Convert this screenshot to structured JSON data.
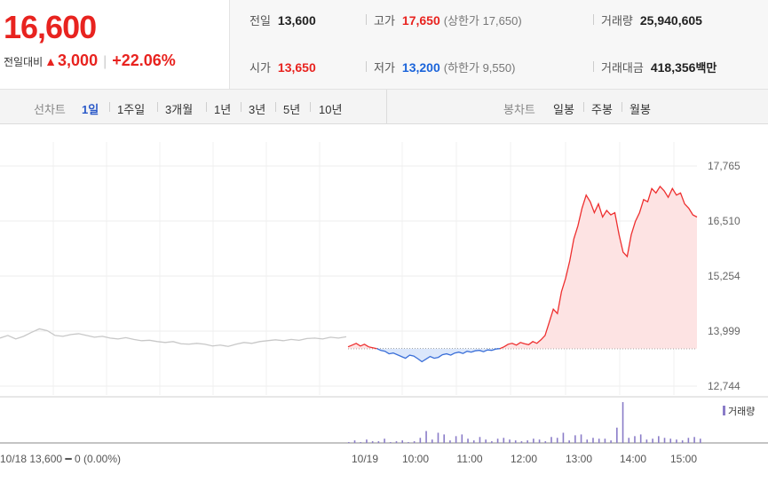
{
  "quote": {
    "price": "16,600",
    "change_label": "전일대비",
    "change_arrow": "▲",
    "change_amount": "3,000",
    "change_percent": "+22.06%"
  },
  "stats": {
    "prev_close": {
      "label": "전일",
      "value": "13,600"
    },
    "high": {
      "label": "고가",
      "value": "17,650",
      "sub": "(상한가 17,650)"
    },
    "volume": {
      "label": "거래량",
      "value": "25,940,605"
    },
    "open": {
      "label": "시가",
      "value": "13,650"
    },
    "low": {
      "label": "저가",
      "value": "13,200",
      "sub": "(하한가 9,550)"
    },
    "trade_value": {
      "label": "거래대금",
      "value": "418,356",
      "unit": "백만"
    }
  },
  "tabs": {
    "line_chart_label": "선차트",
    "periods": [
      "1일",
      "1주일",
      "3개월",
      "1년",
      "3년",
      "5년",
      "10년"
    ],
    "active_period": "1일",
    "candle_chart_label": "봉차트",
    "candles": [
      "일봉",
      "주봉",
      "월봉"
    ]
  },
  "chart": {
    "prev_footer": "10/18  13,600 ━ 0 (0.00%)",
    "volume_legend": "거래량",
    "colors": {
      "up": "#ee2f2f",
      "down": "#3a6fd8",
      "prev": "#c8c8c8",
      "up_fill": "#fde3e3",
      "down_fill": "#dbe7fb",
      "volume": "#8a7cc8"
    }
  },
  "chart_data": {
    "type": "line",
    "y_ticks": [
      "17,765",
      "16,510",
      "15,254",
      "13,999",
      "12,744"
    ],
    "ylim": [
      12744,
      17765
    ],
    "x_ticks": [
      "10/19",
      "10:00",
      "11:00",
      "12:00",
      "13:00",
      "14:00",
      "15:00"
    ],
    "baseline": 13600,
    "prev_day_date": "10/18",
    "previous_session": [
      13840,
      13900,
      13820,
      13880,
      13970,
      14050,
      14010,
      13900,
      13880,
      13920,
      13940,
      13900,
      13860,
      13880,
      13840,
      13820,
      13850,
      13810,
      13780,
      13790,
      13760,
      13740,
      13760,
      13710,
      13700,
      13720,
      13700,
      13660,
      13680,
      13650,
      13700,
      13740,
      13720,
      13760,
      13780,
      13800,
      13780,
      13810,
      13790,
      13830,
      13840,
      13820,
      13860,
      13840,
      13870
    ],
    "today": [
      13640,
      13680,
      13720,
      13660,
      13700,
      13640,
      13620,
      13600,
      13560,
      13540,
      13480,
      13500,
      13460,
      13420,
      13380,
      13450,
      13430,
      13370,
      13300,
      13360,
      13420,
      13380,
      13400,
      13460,
      13480,
      13450,
      13500,
      13520,
      13490,
      13540,
      13520,
      13550,
      13560,
      13530,
      13570,
      13560,
      13590,
      13600,
      13640,
      13700,
      13720,
      13680,
      13740,
      13710,
      13690,
      13760,
      13720,
      13800,
      13900,
      14200,
      14500,
      14400,
      14900,
      15200,
      15600,
      16100,
      16400,
      16800,
      17100,
      16950,
      16700,
      16900,
      16600,
      16750,
      16650,
      16700,
      16200,
      15800,
      15700,
      16200,
      16500,
      16700,
      17000,
      16950,
      17250,
      17150,
      17300,
      17200,
      17050,
      17250,
      17100,
      17150,
      16900,
      16800,
      16650,
      16600
    ],
    "volume": [
      1,
      3,
      1,
      4,
      2,
      2,
      5,
      1,
      2,
      3,
      1,
      2,
      6,
      14,
      4,
      12,
      10,
      3,
      8,
      10,
      5,
      3,
      7,
      4,
      2,
      5,
      6,
      4,
      3,
      2,
      3,
      5,
      4,
      2,
      7,
      6,
      12,
      3,
      9,
      10,
      4,
      6,
      5,
      5,
      3,
      18,
      48,
      6,
      8,
      10,
      4,
      5,
      8,
      6,
      5,
      4,
      3,
      6,
      7,
      5
    ]
  }
}
